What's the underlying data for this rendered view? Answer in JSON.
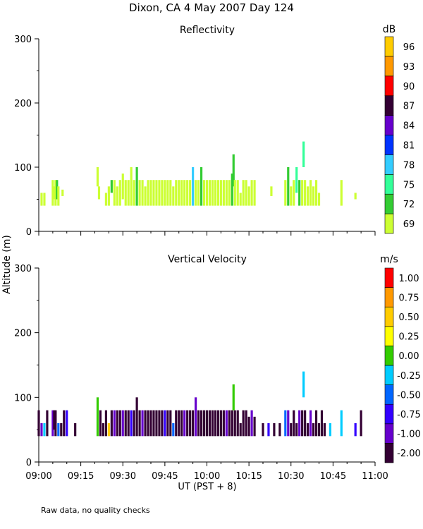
{
  "figure": {
    "title": "Dixon, CA  4 May 2007  Day 124",
    "ylabel": "Altitude (m)",
    "xlabel": "UT  (PST + 8)",
    "footnote": "Raw data, no quality checks"
  },
  "colors": {
    "reflectivity_scale": [
      "#ccff33",
      "#33cc33",
      "#33ff99",
      "#33ccff",
      "#0033ff",
      "#6600cc",
      "#330033",
      "#ff0000",
      "#ff9900",
      "#ffcc00"
    ],
    "velocity_scale": [
      "#330033",
      "#6600cc",
      "#3300ff",
      "#0066ff",
      "#00ccff",
      "#33cc00",
      "#ffff00",
      "#ffcc00",
      "#ff9900",
      "#ff0000"
    ]
  },
  "chart_data": [
    {
      "type": "heatmap",
      "title": "Reflectivity",
      "colorbar_unit": "dB",
      "colorbar_labels": [
        "69",
        "72",
        "75",
        "78",
        "81",
        "84",
        "87",
        "90",
        "93",
        "96"
      ],
      "x_ticks": [
        "09:00",
        "09:15",
        "09:30",
        "09:45",
        "10:00",
        "10:15",
        "10:30",
        "10:45",
        "11:00"
      ],
      "y_ticks": [
        "0",
        "100",
        "200",
        "300"
      ],
      "xlim_min": [
        0,
        120
      ],
      "ylim": [
        0,
        300
      ],
      "cells": [
        [
          1,
          40,
          60,
          0
        ],
        [
          2,
          40,
          60,
          0
        ],
        [
          5,
          40,
          80,
          0
        ],
        [
          5.5,
          50,
          70,
          0
        ],
        [
          6,
          40,
          80,
          0
        ],
        [
          6.5,
          50,
          80,
          1
        ],
        [
          7,
          40,
          70,
          0
        ],
        [
          8.5,
          55,
          65,
          0
        ],
        [
          21,
          70,
          100,
          0
        ],
        [
          21.5,
          50,
          70,
          0
        ],
        [
          24,
          40,
          60,
          0
        ],
        [
          25,
          40,
          70,
          0
        ],
        [
          26,
          60,
          80,
          1
        ],
        [
          27,
          40,
          80,
          0
        ],
        [
          28,
          40,
          70,
          0
        ],
        [
          29,
          40,
          80,
          0
        ],
        [
          30,
          50,
          90,
          0
        ],
        [
          31,
          40,
          80,
          0
        ],
        [
          32,
          40,
          80,
          0
        ],
        [
          33,
          40,
          100,
          0
        ],
        [
          34,
          40,
          80,
          0
        ],
        [
          35,
          40,
          100,
          1
        ],
        [
          36,
          40,
          80,
          0
        ],
        [
          37,
          40,
          80,
          0
        ],
        [
          38,
          40,
          70,
          0
        ],
        [
          39,
          40,
          80,
          0
        ],
        [
          40,
          40,
          80,
          0
        ],
        [
          41,
          40,
          80,
          0
        ],
        [
          42,
          40,
          80,
          0
        ],
        [
          43,
          40,
          80,
          0
        ],
        [
          44,
          40,
          80,
          0
        ],
        [
          45,
          40,
          80,
          0
        ],
        [
          46,
          40,
          80,
          0
        ],
        [
          47,
          40,
          80,
          0
        ],
        [
          48,
          40,
          70,
          0
        ],
        [
          49,
          40,
          80,
          0
        ],
        [
          50,
          40,
          80,
          0
        ],
        [
          51,
          40,
          80,
          0
        ],
        [
          52,
          40,
          80,
          0
        ],
        [
          53,
          40,
          80,
          0
        ],
        [
          54,
          40,
          80,
          0
        ],
        [
          55,
          40,
          100,
          3
        ],
        [
          56,
          40,
          80,
          0
        ],
        [
          57,
          40,
          80,
          0
        ],
        [
          58,
          40,
          100,
          1
        ],
        [
          59,
          40,
          80,
          0
        ],
        [
          60,
          40,
          80,
          0
        ],
        [
          61,
          40,
          80,
          0
        ],
        [
          62,
          40,
          80,
          0
        ],
        [
          63,
          40,
          80,
          0
        ],
        [
          64,
          40,
          80,
          0
        ],
        [
          65,
          40,
          80,
          0
        ],
        [
          66,
          40,
          80,
          0
        ],
        [
          67,
          40,
          80,
          0
        ],
        [
          68,
          40,
          80,
          0
        ],
        [
          69,
          40,
          90,
          1
        ],
        [
          69.5,
          70,
          120,
          1
        ],
        [
          70,
          40,
          80,
          0
        ],
        [
          71,
          40,
          80,
          0
        ],
        [
          72,
          40,
          60,
          0
        ],
        [
          73,
          40,
          80,
          0
        ],
        [
          74,
          40,
          80,
          0
        ],
        [
          75,
          40,
          70,
          0
        ],
        [
          76,
          40,
          80,
          0
        ],
        [
          77,
          40,
          80,
          0
        ],
        [
          83,
          55,
          70,
          0
        ],
        [
          88,
          40,
          80,
          0
        ],
        [
          89,
          40,
          100,
          1
        ],
        [
          90,
          40,
          70,
          0
        ],
        [
          91,
          40,
          80,
          0
        ],
        [
          92,
          60,
          100,
          2
        ],
        [
          93,
          40,
          80,
          1
        ],
        [
          94,
          40,
          80,
          0
        ],
        [
          94.5,
          100,
          140,
          2
        ],
        [
          95,
          40,
          80,
          0
        ],
        [
          96,
          40,
          70,
          0
        ],
        [
          97,
          40,
          80,
          0
        ],
        [
          98,
          40,
          70,
          0
        ],
        [
          99,
          40,
          80,
          0
        ],
        [
          100,
          40,
          60,
          0
        ],
        [
          108,
          40,
          80,
          0
        ],
        [
          113,
          50,
          60,
          0
        ]
      ]
    },
    {
      "type": "heatmap",
      "title": "Vertical Velocity",
      "colorbar_unit": "m/s",
      "colorbar_labels": [
        "-2.00",
        "-1.00",
        "-0.75",
        "-0.50",
        "-0.25",
        "0.00",
        "0.25",
        "0.50",
        "0.75",
        "1.00"
      ],
      "x_ticks": [
        "09:00",
        "09:15",
        "09:30",
        "09:45",
        "10:00",
        "10:15",
        "10:30",
        "10:45",
        "11:00"
      ],
      "y_ticks": [
        "0",
        "100",
        "200",
        "300"
      ],
      "xlim_min": [
        0,
        120
      ],
      "ylim": [
        0,
        300
      ],
      "cells": [
        [
          0,
          40,
          80,
          0
        ],
        [
          1,
          40,
          60,
          1
        ],
        [
          2,
          40,
          60,
          4
        ],
        [
          3,
          40,
          80,
          0
        ],
        [
          5,
          40,
          80,
          1
        ],
        [
          5.5,
          50,
          80,
          0
        ],
        [
          6,
          40,
          80,
          0
        ],
        [
          7,
          40,
          60,
          3
        ],
        [
          8,
          40,
          60,
          0
        ],
        [
          9,
          40,
          80,
          0
        ],
        [
          10,
          40,
          80,
          2
        ],
        [
          13,
          40,
          60,
          0
        ],
        [
          21,
          40,
          100,
          5
        ],
        [
          22,
          40,
          80,
          0
        ],
        [
          23,
          40,
          60,
          0
        ],
        [
          24,
          40,
          80,
          0
        ],
        [
          25,
          40,
          60,
          7
        ],
        [
          26,
          40,
          80,
          0
        ],
        [
          27,
          40,
          80,
          1
        ],
        [
          28,
          40,
          80,
          0
        ],
        [
          29,
          40,
          80,
          0
        ],
        [
          30,
          40,
          80,
          1
        ],
        [
          31,
          40,
          80,
          0
        ],
        [
          32,
          40,
          80,
          0
        ],
        [
          33,
          40,
          80,
          2
        ],
        [
          34,
          40,
          80,
          0
        ],
        [
          35,
          40,
          100,
          0
        ],
        [
          36,
          40,
          80,
          0
        ],
        [
          37,
          40,
          80,
          1
        ],
        [
          38,
          40,
          80,
          0
        ],
        [
          39,
          40,
          80,
          0
        ],
        [
          40,
          40,
          80,
          0
        ],
        [
          41,
          40,
          80,
          0
        ],
        [
          42,
          40,
          80,
          0
        ],
        [
          43,
          40,
          80,
          0
        ],
        [
          44,
          40,
          80,
          0
        ],
        [
          45,
          40,
          80,
          2
        ],
        [
          46,
          40,
          80,
          0
        ],
        [
          47,
          40,
          80,
          0
        ],
        [
          48,
          40,
          60,
          3
        ],
        [
          49,
          40,
          80,
          0
        ],
        [
          50,
          40,
          80,
          0
        ],
        [
          51,
          40,
          80,
          0
        ],
        [
          52,
          40,
          80,
          1
        ],
        [
          53,
          40,
          80,
          0
        ],
        [
          54,
          40,
          80,
          0
        ],
        [
          55,
          40,
          80,
          0
        ],
        [
          56,
          40,
          100,
          1
        ],
        [
          57,
          40,
          80,
          0
        ],
        [
          58,
          40,
          80,
          0
        ],
        [
          59,
          40,
          80,
          0
        ],
        [
          60,
          40,
          80,
          0
        ],
        [
          61,
          40,
          80,
          0
        ],
        [
          62,
          40,
          80,
          0
        ],
        [
          63,
          40,
          80,
          0
        ],
        [
          64,
          40,
          80,
          0
        ],
        [
          65,
          40,
          80,
          0
        ],
        [
          66,
          40,
          80,
          0
        ],
        [
          67,
          40,
          80,
          1
        ],
        [
          68,
          40,
          80,
          0
        ],
        [
          69,
          40,
          80,
          0
        ],
        [
          69.5,
          80,
          120,
          5
        ],
        [
          70,
          40,
          80,
          0
        ],
        [
          71,
          40,
          80,
          0
        ],
        [
          72,
          40,
          60,
          0
        ],
        [
          73,
          40,
          80,
          0
        ],
        [
          74,
          40,
          80,
          0
        ],
        [
          75,
          40,
          70,
          0
        ],
        [
          76,
          40,
          80,
          1
        ],
        [
          77,
          40,
          70,
          0
        ],
        [
          80,
          40,
          60,
          0
        ],
        [
          82,
          40,
          60,
          2
        ],
        [
          84,
          40,
          60,
          0
        ],
        [
          86,
          40,
          60,
          0
        ],
        [
          88,
          40,
          80,
          3
        ],
        [
          89,
          40,
          80,
          1
        ],
        [
          90,
          40,
          60,
          0
        ],
        [
          91,
          40,
          80,
          0
        ],
        [
          92,
          40,
          60,
          0
        ],
        [
          93,
          40,
          80,
          1
        ],
        [
          94,
          40,
          80,
          0
        ],
        [
          94.5,
          100,
          140,
          4
        ],
        [
          95,
          40,
          80,
          0
        ],
        [
          96,
          40,
          60,
          0
        ],
        [
          97,
          40,
          80,
          1
        ],
        [
          98,
          40,
          60,
          0
        ],
        [
          99,
          40,
          80,
          0
        ],
        [
          100,
          40,
          60,
          0
        ],
        [
          101,
          40,
          80,
          0
        ],
        [
          102,
          40,
          60,
          0
        ],
        [
          104,
          40,
          60,
          4
        ],
        [
          108,
          40,
          80,
          4
        ],
        [
          113,
          40,
          60,
          2
        ],
        [
          115,
          40,
          80,
          0
        ]
      ]
    }
  ]
}
